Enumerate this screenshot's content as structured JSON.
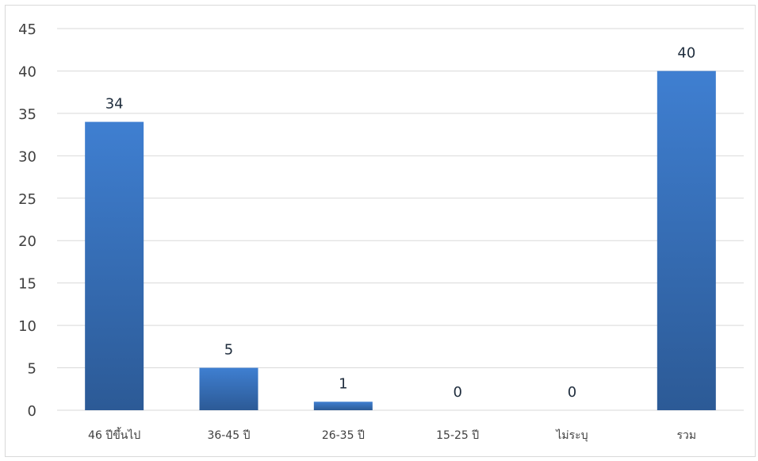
{
  "chart_data": {
    "type": "bar",
    "categories": [
      "46 ปีขึ้นไป",
      "36-45 ปี",
      "26-35 ปี",
      "15-25 ปี",
      "ไม่ระบุ",
      "รวม"
    ],
    "values": [
      34,
      5,
      1,
      0,
      0,
      40
    ],
    "data_labels": [
      "34",
      "5",
      "1",
      "0",
      "0",
      "40"
    ],
    "ylim": [
      0,
      45
    ],
    "y_ticks": [
      "0",
      "5",
      "10",
      "15",
      "20",
      "25",
      "30",
      "35",
      "40",
      "45"
    ],
    "grid": true,
    "legend": "none",
    "colors": {
      "bar_top": "#3f7fd1",
      "bar_bottom": "#2c5a96",
      "grid": "#d9d9d9"
    }
  }
}
